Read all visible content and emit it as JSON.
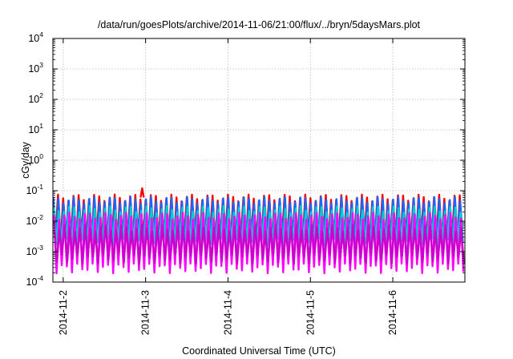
{
  "chart_data": {
    "type": "line",
    "title": "/data/run/goesPlots/archive/2014-11-06/21:00/flux/../bryn/5daysMars.plot",
    "xlabel": "Coordinated Universal Time (UTC)",
    "ylabel": "cGy/day",
    "yscale": "log",
    "ylim": [
      0.0001,
      10000
    ],
    "xlim": [
      "2014-11-01 21:00",
      "2014-11-06 21:00"
    ],
    "grid": true,
    "legend": "none",
    "y_ticks": [
      {
        "base": "10",
        "exp": "-4"
      },
      {
        "base": "10",
        "exp": "-3"
      },
      {
        "base": "10",
        "exp": "-2"
      },
      {
        "base": "10",
        "exp": "-1"
      },
      {
        "base": "10",
        "exp": "0"
      },
      {
        "base": "10",
        "exp": "1"
      },
      {
        "base": "10",
        "exp": "2"
      },
      {
        "base": "10",
        "exp": "3"
      },
      {
        "base": "10",
        "exp": "4"
      }
    ],
    "x_ticks": [
      "2014-11-2",
      "2014-11-3",
      "2014-11-4",
      "2014-11-5",
      "2014-11-6"
    ],
    "cycles_per_day": 16,
    "series": [
      {
        "color": "#ff0000",
        "peak": 0.06,
        "trough": 0.0025,
        "spike": {
          "x": "2014-11-02 23:00",
          "value": 0.12
        }
      },
      {
        "color": "#1a66ff",
        "peak": 0.05,
        "trough": 0.0025
      },
      {
        "color": "#00cccc",
        "peak": 0.025,
        "trough": 0.002
      },
      {
        "color": "#ff00ff",
        "peak": 0.015,
        "trough": 0.0003
      },
      {
        "color": "#cc00cc",
        "peak": 0.006,
        "trough": 0.0006
      }
    ]
  }
}
